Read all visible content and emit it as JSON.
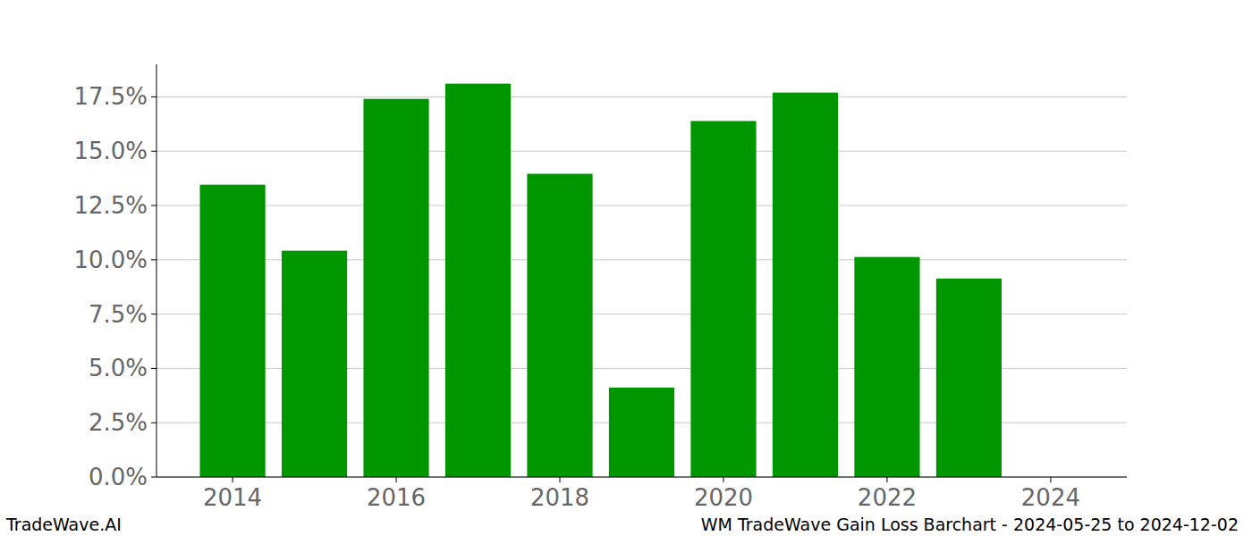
{
  "chart_data": {
    "type": "bar",
    "title": "WM TradeWave Gain Loss Barchart - 2024-05-25 to 2024-12-02",
    "annotations": [
      "TradeWave.AI"
    ],
    "x": [
      2014,
      2015,
      2016,
      2017,
      2018,
      2019,
      2020,
      2021,
      2022,
      2023
    ],
    "values": [
      13.46,
      10.42,
      17.41,
      18.11,
      13.96,
      4.12,
      16.39,
      17.7,
      10.13,
      9.14
    ],
    "color": "#009600",
    "xlim": [
      2013.07,
      2024.93
    ],
    "xticks": [
      2014,
      2016,
      2018,
      2020,
      2022,
      2024
    ],
    "ylim": [
      0,
      19.0
    ],
    "yticks": [
      {
        "value": 0,
        "label": "0.0%"
      },
      {
        "value": 2.5,
        "label": "2.5%"
      },
      {
        "value": 5,
        "label": "5.0%"
      },
      {
        "value": 7.5,
        "label": "7.5%"
      },
      {
        "value": 10,
        "label": "10.0%"
      },
      {
        "value": 12.5,
        "label": "12.5%"
      },
      {
        "value": 15,
        "label": "15.0%"
      },
      {
        "value": 17.5,
        "label": "17.5%"
      }
    ],
    "grid": true
  }
}
